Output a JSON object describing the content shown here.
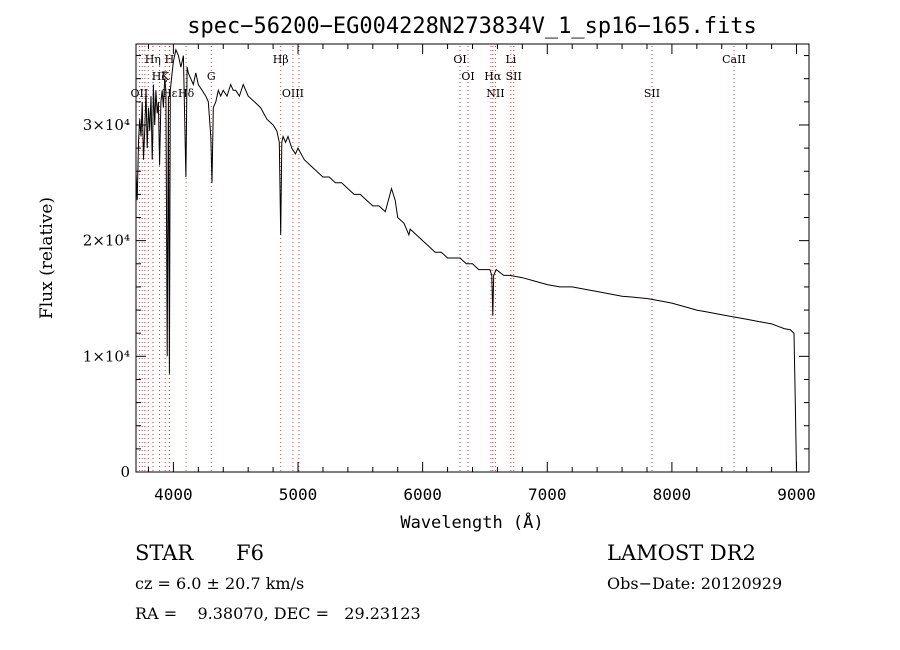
{
  "chart_data": {
    "type": "line",
    "title": "spec−56200−EG004228N273834V_1_sp16−165.fits",
    "xlabel": "Wavelength (Å)",
    "ylabel": "Flux (relative)",
    "xlim": [
      3700,
      9100
    ],
    "ylim": [
      0,
      37000
    ],
    "x_ticks": [
      {
        "value": 4000,
        "label": "4000"
      },
      {
        "value": 5000,
        "label": "5000"
      },
      {
        "value": 6000,
        "label": "6000"
      },
      {
        "value": 7000,
        "label": "7000"
      },
      {
        "value": 8000,
        "label": "8000"
      },
      {
        "value": 9000,
        "label": "9000"
      }
    ],
    "y_ticks": [
      {
        "value": 0,
        "label": "0"
      },
      {
        "value": 10000,
        "label": "1×10⁴"
      },
      {
        "value": 20000,
        "label": "2×10⁴"
      },
      {
        "value": 30000,
        "label": "3×10⁴"
      }
    ],
    "grid": false,
    "line_color": "#000000",
    "marker_color": "#d94040",
    "series": [
      {
        "x": [
          3700,
          3710,
          3720,
          3730,
          3740,
          3750,
          3760,
          3770,
          3780,
          3790,
          3800,
          3810,
          3820,
          3830,
          3835,
          3840,
          3850,
          3860,
          3870,
          3880,
          3889,
          3900,
          3910,
          3920,
          3930,
          3940,
          3950,
          3960,
          3968,
          3975,
          3990,
          4000,
          4020,
          4040,
          4060,
          4080,
          4100,
          4110,
          4120,
          4140,
          4160,
          4180,
          4200,
          4230,
          4260,
          4280,
          4300,
          4310,
          4320,
          4340,
          4360,
          4380,
          4400,
          4430,
          4460,
          4480,
          4500,
          4530,
          4560,
          4600,
          4650,
          4700,
          4750,
          4800,
          4830,
          4850,
          4861,
          4870,
          4880,
          4900,
          4920,
          4950,
          4980,
          5000,
          5050,
          5100,
          5150,
          5200,
          5250,
          5300,
          5350,
          5400,
          5450,
          5500,
          5550,
          5600,
          5650,
          5700,
          5750,
          5780,
          5800,
          5850,
          5890,
          5900,
          5950,
          6000,
          6050,
          6100,
          6150,
          6200,
          6250,
          6300,
          6350,
          6400,
          6450,
          6500,
          6540,
          6555,
          6563,
          6570,
          6590,
          6650,
          6700,
          6800,
          6900,
          7000,
          7100,
          7200,
          7300,
          7400,
          7500,
          7600,
          7700,
          7800,
          7900,
          8000,
          8100,
          8200,
          8300,
          8400,
          8500,
          8600,
          8700,
          8800,
          8850,
          8900,
          8950,
          8980,
          8990,
          9000
        ],
        "y": [
          26000,
          23500,
          28500,
          30500,
          29000,
          32000,
          27000,
          29500,
          33000,
          28000,
          31500,
          29500,
          32500,
          27000,
          29000,
          33500,
          30000,
          33000,
          31000,
          32000,
          26500,
          32000,
          33000,
          31500,
          34000,
          33000,
          10000,
          32500,
          8500,
          33000,
          34500,
          35500,
          36500,
          36000,
          35000,
          36000,
          25500,
          35000,
          34500,
          34000,
          33500,
          34500,
          33500,
          33000,
          32500,
          32000,
          29000,
          25000,
          31500,
          32000,
          33000,
          32500,
          33000,
          32500,
          33500,
          33000,
          33000,
          32500,
          33500,
          32500,
          32000,
          31500,
          30500,
          30000,
          29500,
          28500,
          20500,
          28500,
          29000,
          28500,
          29000,
          28000,
          27500,
          28000,
          27000,
          26500,
          26000,
          25500,
          25500,
          25000,
          25000,
          24500,
          24000,
          24000,
          23500,
          23000,
          23000,
          22500,
          24500,
          23500,
          22000,
          21500,
          20500,
          21000,
          20500,
          20000,
          19500,
          19000,
          19000,
          18500,
          18500,
          18500,
          18000,
          18000,
          17500,
          17500,
          17500,
          17000,
          13500,
          17000,
          17500,
          17000,
          17000,
          16800,
          16500,
          16200,
          16000,
          16000,
          15800,
          15600,
          15400,
          15200,
          15100,
          15000,
          14800,
          14600,
          14300,
          14000,
          13800,
          13600,
          13400,
          13200,
          13000,
          12800,
          12600,
          12400,
          12300,
          12000,
          6000,
          0
        ]
      }
    ],
    "line_markers": [
      {
        "label": "Hη",
        "x": 3835,
        "row": 1
      },
      {
        "label": "H",
        "x": 3968,
        "row": 1
      },
      {
        "label": "Hβ",
        "x": 4861,
        "row": 1
      },
      {
        "label": "OI",
        "x": 6300,
        "row": 1
      },
      {
        "label": "Li",
        "x": 6708,
        "row": 1
      },
      {
        "label": "CaII",
        "x": 8498,
        "row": 1
      },
      {
        "label": "Hζ",
        "x": 3889,
        "row": 2
      },
      {
        "label": "K",
        "x": 3934,
        "row": 2
      },
      {
        "label": "G",
        "x": 4304,
        "row": 2
      },
      {
        "label": "OI",
        "x": 6364,
        "row": 2
      },
      {
        "label": "Hα",
        "x": 6563,
        "row": 2
      },
      {
        "label": "SII",
        "x": 6731,
        "row": 2
      },
      {
        "label": "OII",
        "x": 3727,
        "row": 3
      },
      {
        "label": "Hε",
        "x": 3970,
        "row": 3
      },
      {
        "label": "Hδ",
        "x": 4102,
        "row": 3
      },
      {
        "label": "OIII",
        "x": 4959,
        "row": 3
      },
      {
        "label": "NII",
        "x": 6584,
        "row": 3
      },
      {
        "label": "SII",
        "x": 7840,
        "row": 3
      }
    ],
    "extra_marker_lines": [
      3750,
      3771,
      3798,
      3836,
      3889,
      3934,
      3970,
      4102,
      4304,
      4861,
      4959,
      5007,
      6300,
      6364,
      6548,
      6563,
      6584,
      6708,
      6731,
      7840,
      8498
    ]
  },
  "info": {
    "object_class": "STAR",
    "subclass": "F6",
    "cz": "cz = 6.0 ± 20.7 km/s",
    "coords": "RA =    9.38070, DEC =   29.23123",
    "survey": "LAMOST DR2",
    "obs_date": "Obs−Date: 20120929"
  }
}
